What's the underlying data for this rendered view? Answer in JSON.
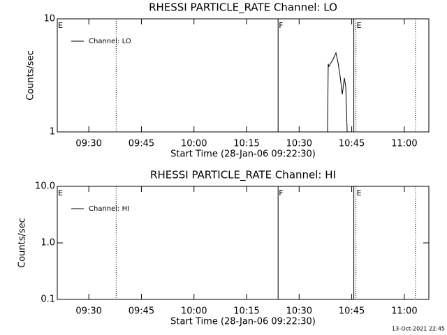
{
  "chart_data": [
    {
      "type": "line",
      "title": "RHESSI PARTICLE_RATE Channel: LO",
      "x_label": "Start Time (28-Jan-06 09:22:30)",
      "y_label": "Counts/sec",
      "x": [
        638.1,
        638.3,
        638.5,
        639.1,
        639.7,
        640.1,
        640.5,
        641.1,
        641.7,
        642.3,
        642.9,
        643.3,
        643.7
      ],
      "series": [
        {
          "name": "Channel: LO",
          "color": "#000000",
          "values": [
            1,
            4,
            3.8,
            4.1,
            4.4,
            4.7,
            5,
            4.1,
            3.1,
            2.15,
            3,
            2.5,
            1
          ]
        }
      ],
      "xlim": [
        561,
        667
      ],
      "xticks": [
        {
          "value": 570,
          "label": "09:30"
        },
        {
          "value": 585,
          "label": "09:45"
        },
        {
          "value": 600,
          "label": "10:00"
        },
        {
          "value": 615,
          "label": "10:15"
        },
        {
          "value": 630,
          "label": "10:30"
        },
        {
          "value": 645,
          "label": "10:45"
        },
        {
          "value": 660,
          "label": "11:00"
        }
      ],
      "ylim": [
        1,
        10
      ],
      "yticks": [
        1,
        10
      ],
      "log_y": true,
      "flags": [
        {
          "x": 561,
          "style": "solid",
          "label": "E"
        },
        {
          "x": 577.8,
          "style": "dotted"
        },
        {
          "x": 624,
          "style": "solid",
          "label": "F"
        },
        {
          "x": 645.6,
          "style": "solid"
        },
        {
          "x": 646.2,
          "style": "dotted",
          "label": "E"
        },
        {
          "x": 663.2,
          "style": "dotted"
        }
      ]
    },
    {
      "type": "line",
      "title": "RHESSI PARTICLE_RATE Channel: HI",
      "x_label": "Start Time (28-Jan-06 09:22:30)",
      "y_label": "Counts/sec",
      "x": [],
      "series": [
        {
          "name": "Channel: HI",
          "color": "#000000",
          "values": []
        }
      ],
      "xlim": [
        561,
        667
      ],
      "xticks": [
        {
          "value": 570,
          "label": "09:30"
        },
        {
          "value": 585,
          "label": "09:45"
        },
        {
          "value": 600,
          "label": "10:00"
        },
        {
          "value": 615,
          "label": "10:15"
        },
        {
          "value": 630,
          "label": "10:30"
        },
        {
          "value": 645,
          "label": "10:45"
        },
        {
          "value": 660,
          "label": "11:00"
        }
      ],
      "ylim": [
        0.1,
        10
      ],
      "yticks": [
        {
          "value": 0.1,
          "label": "0.1"
        },
        {
          "value": 1,
          "label": "1.0"
        },
        {
          "value": 10,
          "label": "10.0"
        }
      ],
      "log_y": true,
      "flags": [
        {
          "x": 561,
          "style": "solid",
          "label": "E"
        },
        {
          "x": 577.8,
          "style": "dotted"
        },
        {
          "x": 624,
          "style": "solid",
          "label": "F"
        },
        {
          "x": 645.6,
          "style": "solid"
        },
        {
          "x": 646.2,
          "style": "dotted",
          "label": "E"
        },
        {
          "x": 663.2,
          "style": "dotted"
        }
      ]
    }
  ],
  "footer": "13-Oct-2021 22:45"
}
